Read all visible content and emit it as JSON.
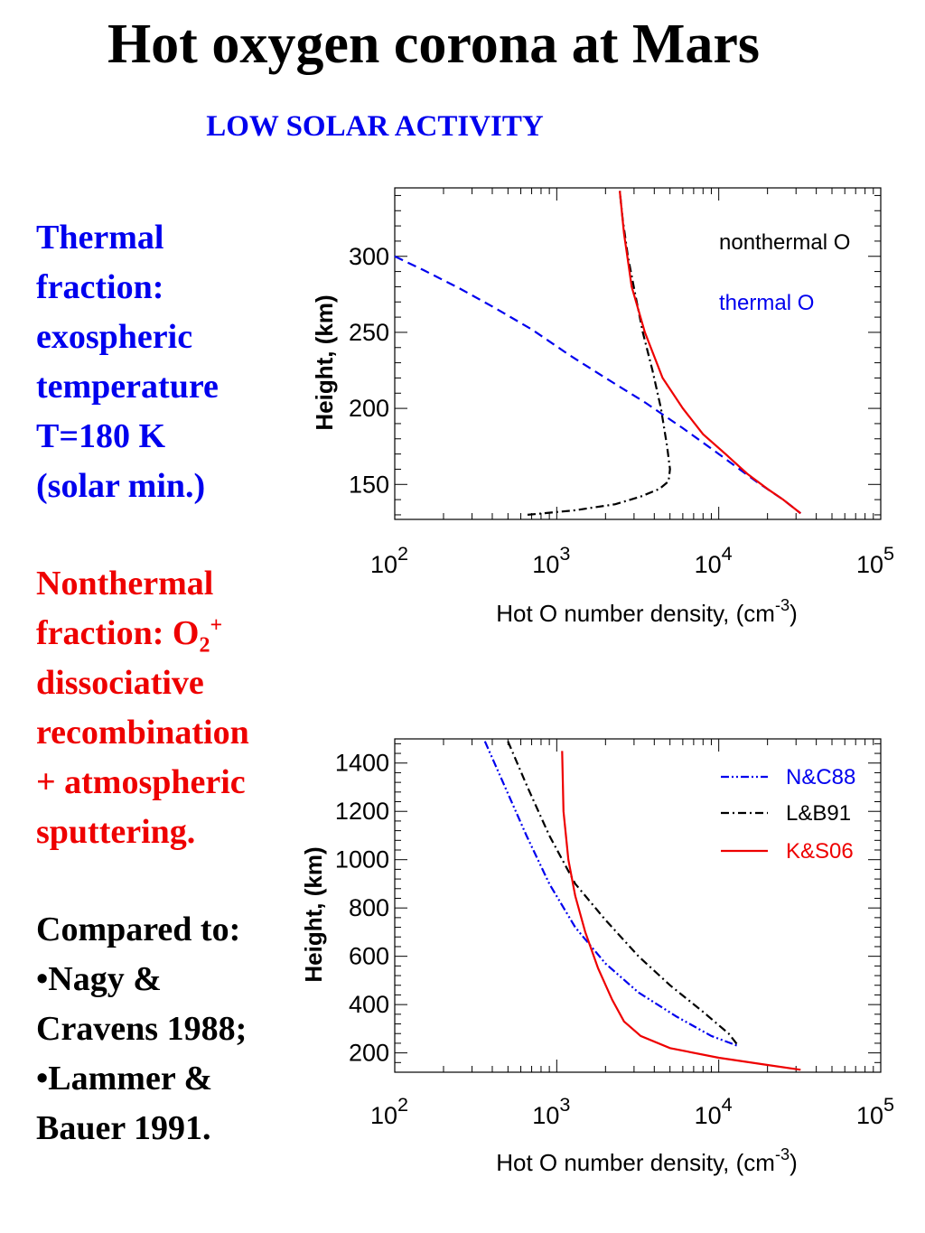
{
  "title": "Hot oxygen corona at Mars",
  "subtitle": "LOW SOLAR ACTIVITY",
  "text_blocks": {
    "thermal": [
      "Thermal",
      "fraction:",
      "exospheric",
      "temperature",
      "T=180 K",
      "(solar min.)"
    ],
    "nonthermal": {
      "line1": "Nonthermal",
      "line2_prefix": "fraction: O",
      "line2_sub": "2",
      "line2_sup": "+",
      "rest": [
        "dissociative",
        "recombination",
        "+ atmospheric",
        "sputtering."
      ]
    },
    "compared": [
      "Compared to:",
      "•Nagy &",
      "Cravens 1988;",
      "•Lammer &",
      "Bauer 1991."
    ]
  },
  "colors": {
    "thermal": "#0000ee",
    "nonthermal": "#ee0000",
    "black": "#000000"
  },
  "chart_data": [
    {
      "type": "line",
      "xscale": "log",
      "xlim": [
        100,
        100000
      ],
      "ylim": [
        127,
        345
      ],
      "xticks": [
        100,
        1000,
        10000,
        100000
      ],
      "xtick_labels": [
        {
          "base": "10",
          "exp": "2"
        },
        {
          "base": "10",
          "exp": "3"
        },
        {
          "base": "10",
          "exp": "4"
        },
        {
          "base": "10",
          "exp": "5"
        }
      ],
      "yticks": [
        150,
        200,
        250,
        300
      ],
      "ytick_labels": [
        "150",
        "200",
        "250",
        "300"
      ],
      "xlabel": "Hot O number density, (cm",
      "xlabel_sup": "-3",
      "xlabel_end": ")",
      "ylabel": "Height,  (km)",
      "legend_placement": "top-right",
      "legend": [
        {
          "label": "nonthermal O",
          "color": "#000000"
        },
        {
          "label": "thermal O",
          "color": "#0000ee"
        }
      ],
      "series": [
        {
          "color": "#000000",
          "dash": "dashdot",
          "x": [
            660,
            1300,
            2300,
            3300,
            4300,
            4900,
            5000,
            4800,
            4400,
            3900,
            3400,
            3050,
            2750,
            2550,
            2450
          ],
          "y": [
            130,
            133,
            137,
            142,
            147,
            152,
            160,
            175,
            200,
            225,
            250,
            275,
            300,
            325,
            343
          ]
        },
        {
          "color": "#0000ee",
          "dash": "dashed",
          "x": [
            100,
            150,
            250,
            400,
            700,
            1200,
            2000,
            3500,
            6000,
            10000,
            17000,
            25000,
            32000
          ],
          "y": [
            300,
            291,
            279,
            267,
            252,
            235,
            220,
            204,
            187,
            170,
            152,
            140,
            131
          ]
        },
        {
          "color": "#ee0000",
          "dash": "solid",
          "x": [
            32000,
            25000,
            20000,
            15000,
            11000,
            8000,
            6000,
            4500,
            3500,
            2900,
            2600,
            2450
          ],
          "y": [
            131,
            140,
            147,
            157,
            170,
            183,
            200,
            220,
            250,
            280,
            315,
            343
          ]
        }
      ]
    },
    {
      "type": "line",
      "xscale": "log",
      "xlim": [
        100,
        100000
      ],
      "ylim": [
        120,
        1500
      ],
      "xticks": [
        100,
        1000,
        10000,
        100000
      ],
      "xtick_labels": [
        {
          "base": "10",
          "exp": "2"
        },
        {
          "base": "10",
          "exp": "3"
        },
        {
          "base": "10",
          "exp": "4"
        },
        {
          "base": "10",
          "exp": "5"
        }
      ],
      "yticks": [
        200,
        400,
        600,
        800,
        1000,
        1200,
        1400
      ],
      "ytick_labels": [
        "200",
        "400",
        "600",
        "800",
        "1000",
        "1200",
        "1400"
      ],
      "xlabel": "Hot O number density, (cm",
      "xlabel_sup": "-3",
      "xlabel_end": ")",
      "ylabel": "Height,  (km)",
      "legend_placement": "top-right",
      "legend": [
        {
          "label": "N&C88",
          "color": "#0000ee",
          "dash": "dashdotdot"
        },
        {
          "label": "L&B91",
          "color": "#000000",
          "dash": "dashdot"
        },
        {
          "label": "K&S06",
          "color": "#ee0000",
          "dash": "solid"
        }
      ],
      "series": [
        {
          "name": "N&C88",
          "color": "#0000ee",
          "dash": "dashdotdot",
          "x": [
            360,
            480,
            650,
            900,
            1300,
            2000,
            3200,
            5500,
            9000,
            13000
          ],
          "y": [
            1490,
            1300,
            1100,
            900,
            720,
            570,
            450,
            350,
            270,
            230
          ]
        },
        {
          "name": "L&B91",
          "color": "#000000",
          "dash": "dashdot",
          "x": [
            500,
            660,
            900,
            1300,
            2000,
            3200,
            5000,
            8000,
            11500,
            13000
          ],
          "y": [
            1490,
            1300,
            1100,
            900,
            750,
            600,
            480,
            370,
            280,
            235
          ]
        },
        {
          "name": "K&S06",
          "color": "#ee0000",
          "dash": "solid",
          "x": [
            1080,
            1100,
            1180,
            1300,
            1500,
            1800,
            2200,
            2600,
            3300,
            5000,
            10000,
            20000,
            32000
          ],
          "y": [
            1450,
            1200,
            1000,
            850,
            700,
            550,
            420,
            330,
            270,
            220,
            180,
            150,
            130
          ]
        }
      ]
    }
  ]
}
